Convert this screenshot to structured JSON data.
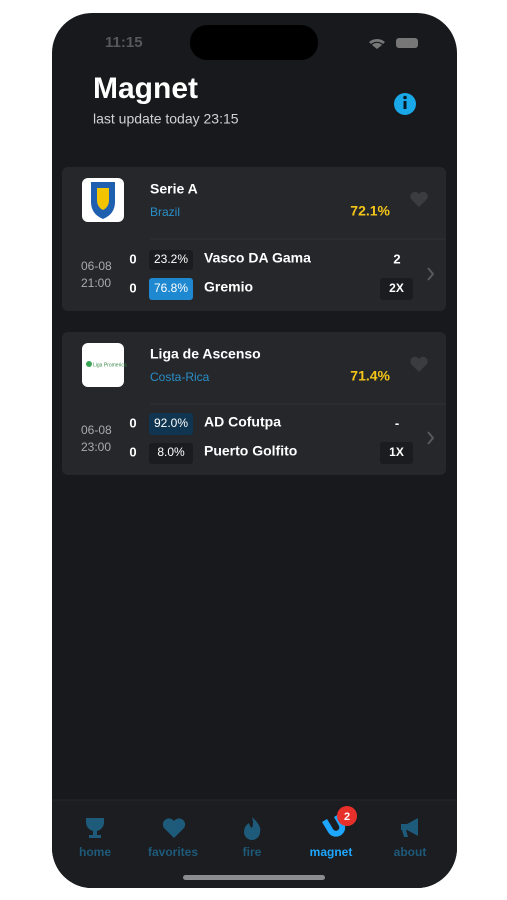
{
  "status": {
    "time": "11:15"
  },
  "header": {
    "title": "Magnet",
    "subtitle": "last update today 23:15"
  },
  "cards": [
    {
      "league": "Serie A",
      "country": "Brazil",
      "percent": "72.1%",
      "date": "06-08",
      "time": "21:00",
      "teams": [
        {
          "score": "0",
          "pct": "23.2%",
          "name": "Vasco DA Gama"
        },
        {
          "score": "0",
          "pct": "76.8%",
          "name": "Gremio"
        }
      ],
      "result": "2",
      "pick": "2X"
    },
    {
      "league": "Liga de Ascenso",
      "logo_text": "Liga Promerica",
      "country": "Costa-Rica",
      "percent": "71.4%",
      "date": "06-08",
      "time": "23:00",
      "teams": [
        {
          "score": "0",
          "pct": "92.0%",
          "name": "AD Cofutpa"
        },
        {
          "score": "0",
          "pct": "8.0%",
          "name": "Puerto Golfito"
        }
      ],
      "result": "-",
      "pick": "1X"
    }
  ],
  "tabs": [
    "home",
    "favorites",
    "fire",
    "magnet",
    "about"
  ],
  "badge": "2"
}
